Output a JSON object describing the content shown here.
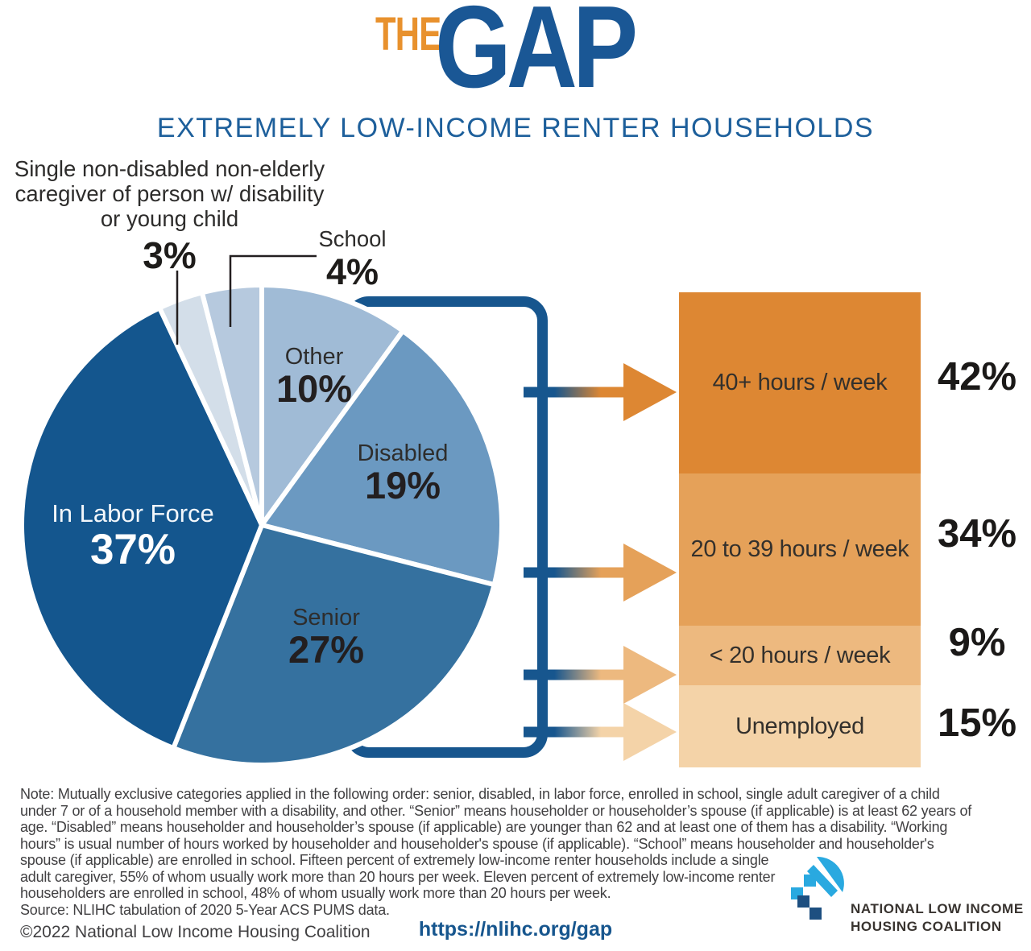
{
  "header": {
    "title_the": "THE",
    "title_gap": "GAP",
    "subtitle": "EXTREMELY LOW-INCOME RENTER HOUSEHOLDS"
  },
  "colors": {
    "orange_accent": "#e8912d",
    "brand_blue": "#1a5795",
    "bracket_blue": "#17568e",
    "white": "#ffffff"
  },
  "chart_data": {
    "type": "pie",
    "title": "EXTREMELY LOW-INCOME RENTER HOUSEHOLDS",
    "direction": "clockwise",
    "start_angle": "12 o'clock",
    "slices": [
      {
        "label": "Other",
        "value": 10,
        "pct": "10%",
        "color": "#a0bbd6"
      },
      {
        "label": "Disabled",
        "value": 19,
        "pct": "19%",
        "color": "#6b99c1"
      },
      {
        "label": "Senior",
        "value": 27,
        "pct": "27%",
        "color": "#35719f"
      },
      {
        "label": "In Labor Force",
        "value": 37,
        "pct": "37%",
        "color": "#14568e"
      },
      {
        "label": "Single non-disabled non-elderly caregiver of person w/ disability or young child",
        "label_lines": [
          "Single non-disabled non-elderly",
          "caregiver of person w/ disability",
          "or young child"
        ],
        "value": 3,
        "pct": "3%",
        "color": "#d3dee9"
      },
      {
        "label": "School",
        "value": 4,
        "pct": "4%",
        "color": "#b6c9de"
      }
    ],
    "labor_force_breakdown": {
      "type": "bar",
      "items": [
        {
          "label": "40+ hours / week",
          "value": 42,
          "pct": "42%",
          "color": "#dd8733"
        },
        {
          "label": "20 to 39 hours / week",
          "value": 34,
          "pct": "34%",
          "color": "#e5a159"
        },
        {
          "label": "< 20 hours / week",
          "value": 9,
          "pct": "9%",
          "color": "#edb97f"
        },
        {
          "label": "Unemployed",
          "value": 15,
          "pct": "15%",
          "color": "#f4d3a8"
        }
      ]
    }
  },
  "note": {
    "lines": [
      "Note: Mutually exclusive categories applied in the following order: senior, disabled, in labor force, enrolled in school, single adult caregiver of a child",
      "under 7 or of a household member with a disability, and other. “Senior” means householder or householder’s spouse (if applicable) is at least 62 years of",
      "age. “Disabled” means householder and householder’s spouse (if applicable) are younger than 62 and at least one of them has a disability. “Working",
      "hours” is usual number of hours worked by householder and householder's spouse (if applicable). “School” means householder and householder's",
      "spouse (if applicable) are enrolled in school. Fifteen percent of extremely low-income renter households include a single",
      "adult caregiver, 55% of whom usually work more than 20 hours per week. Eleven percent of extremely low-income renter",
      "householders are enrolled in school, 48% of whom usually work more than 20 hours per week.",
      "Source: NLIHC tabulation of 2020 5-Year ACS PUMS data."
    ]
  },
  "footer": {
    "copyright": "©2022 National Low Income Housing Coalition",
    "url": "https://nlihc.org/gap"
  },
  "logo": {
    "line1": "NATIONAL LOW INCOME",
    "line2": "HOUSING COALITION"
  }
}
